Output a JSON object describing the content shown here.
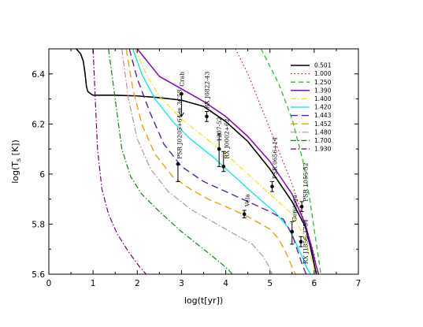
{
  "chart_data": {
    "type": "line",
    "xlabel": "log(t[yr])",
    "ylabel": "log(T_s [K])",
    "xlim": [
      0,
      7
    ],
    "ylim": [
      5.6,
      6.5
    ],
    "xticks": [
      "0",
      "1",
      "2",
      "3",
      "4",
      "5",
      "6",
      "7"
    ],
    "yticks": [
      "5.6",
      "5.8",
      "6",
      "6.2",
      "6.4"
    ],
    "grid": false,
    "legend_position": "top-right",
    "series": [
      {
        "name": "0.501",
        "color": "#000000",
        "dash": "",
        "width": 1.6,
        "x": [
          0.62,
          0.72,
          0.78,
          0.82,
          0.85,
          0.88,
          0.95,
          1.0,
          1.5,
          2.0,
          2.5,
          3.0,
          3.5,
          4.0,
          4.5,
          5.0,
          5.5,
          5.8,
          5.9,
          6.0,
          6.05
        ],
        "y": [
          6.5,
          6.48,
          6.45,
          6.4,
          6.35,
          6.33,
          6.32,
          6.315,
          6.315,
          6.312,
          6.305,
          6.295,
          6.27,
          6.21,
          6.13,
          6.02,
          5.89,
          5.79,
          5.72,
          5.64,
          5.6
        ]
      },
      {
        "name": "1.000",
        "color": "#d40000",
        "dash": "1.5,3",
        "width": 1.1,
        "x": [
          4.22,
          4.5,
          5.0,
          5.5,
          5.8,
          6.0,
          6.08
        ],
        "y": [
          6.5,
          6.4,
          6.18,
          5.96,
          5.8,
          5.68,
          5.6
        ]
      },
      {
        "name": "1.250",
        "color": "#22c422",
        "dash": "6,4",
        "width": 1.3,
        "x": [
          4.8,
          5.2,
          5.5,
          5.75,
          5.9,
          6.0,
          6.1,
          6.15
        ],
        "y": [
          6.5,
          6.36,
          6.22,
          6.05,
          5.9,
          5.78,
          5.66,
          5.6
        ]
      },
      {
        "name": "1.390",
        "color": "#8a00c4",
        "dash": "",
        "width": 1.5,
        "x": [
          2.0,
          2.5,
          3.0,
          3.5,
          4.0,
          4.5,
          5.0,
          5.5,
          5.8,
          5.95,
          6.05,
          6.1
        ],
        "y": [
          6.5,
          6.39,
          6.34,
          6.29,
          6.23,
          6.15,
          6.05,
          5.92,
          5.8,
          5.7,
          5.63,
          5.6
        ]
      },
      {
        "name": "1.400",
        "color": "#eaea00",
        "dash": "7,2.5,1.5,2.5",
        "width": 1.2,
        "x": [
          1.95,
          2.2,
          2.5,
          3.0,
          3.5,
          4.0,
          4.5,
          5.0,
          5.5,
          5.8,
          5.95,
          6.03
        ],
        "y": [
          6.5,
          6.4,
          6.31,
          6.22,
          6.15,
          6.08,
          6.0,
          5.92,
          5.84,
          5.74,
          5.65,
          5.6
        ]
      },
      {
        "name": "1.420",
        "color": "#00e8e8",
        "dash": "",
        "width": 1.3,
        "x": [
          1.9,
          2.1,
          2.4,
          2.8,
          3.2,
          3.7,
          4.2,
          4.7,
          5.1,
          5.4,
          5.6,
          5.75,
          5.85,
          5.92
        ],
        "y": [
          6.5,
          6.4,
          6.3,
          6.21,
          6.14,
          6.07,
          5.99,
          5.91,
          5.85,
          5.79,
          5.72,
          5.66,
          5.62,
          5.6
        ]
      },
      {
        "name": "1.443",
        "color": "#5a20b0",
        "dash": "9,5",
        "width": 1.4,
        "x": [
          1.82,
          2.0,
          2.3,
          2.6,
          3.0,
          3.5,
          4.0,
          4.5,
          5.0,
          5.3,
          5.5,
          5.65,
          5.75,
          5.82
        ],
        "y": [
          6.5,
          6.38,
          6.24,
          6.12,
          6.03,
          5.97,
          5.93,
          5.89,
          5.85,
          5.82,
          5.76,
          5.68,
          5.63,
          5.6
        ]
      },
      {
        "name": "1.452",
        "color": "#f0a000",
        "dash": "9,5",
        "width": 1.4,
        "x": [
          1.75,
          1.9,
          2.1,
          2.4,
          2.8,
          3.2,
          3.6,
          4.0,
          4.5,
          5.0,
          5.2,
          5.35,
          5.45,
          5.52,
          5.58
        ],
        "y": [
          6.5,
          6.34,
          6.2,
          6.08,
          5.99,
          5.94,
          5.9,
          5.87,
          5.83,
          5.78,
          5.74,
          5.69,
          5.65,
          5.62,
          5.6
        ]
      },
      {
        "name": "1.480",
        "color": "#c09090",
        "dash": "8,2.5,1.5,2.5",
        "width": 1.2,
        "x": [
          1.65,
          1.8,
          2.0,
          2.3,
          2.7,
          3.2,
          3.7,
          4.2,
          4.6,
          4.85,
          4.98,
          5.05
        ],
        "y": [
          6.5,
          6.3,
          6.14,
          6.02,
          5.93,
          5.86,
          5.81,
          5.76,
          5.72,
          5.67,
          5.63,
          5.6
        ]
      },
      {
        "name": "1.700",
        "color": "#0a8a0a",
        "dash": "7,2.5,1.5,2.5",
        "width": 1.2,
        "x": [
          1.35,
          1.5,
          1.65,
          1.85,
          2.1,
          2.5,
          3.0,
          3.5,
          3.85,
          4.05,
          4.15
        ],
        "y": [
          6.5,
          6.3,
          6.1,
          5.99,
          5.92,
          5.85,
          5.77,
          5.7,
          5.65,
          5.62,
          5.6
        ]
      },
      {
        "name": "1.930",
        "color": "#7a006a",
        "dash": "7,2.5,1.5,2.5",
        "width": 1.2,
        "x": [
          1.0,
          1.05,
          1.1,
          1.2,
          1.35,
          1.55,
          1.8,
          2.05,
          2.2
        ],
        "y": [
          6.5,
          6.3,
          6.1,
          5.94,
          5.84,
          5.76,
          5.69,
          5.63,
          5.6
        ]
      }
    ],
    "observations": [
      {
        "name": "Crab",
        "x": 3.0,
        "y": 6.32,
        "err_lo": 0.09,
        "err_hi": 0,
        "upper_limit": true
      },
      {
        "name": "RX J0822-43",
        "x": 3.57,
        "y": 6.23,
        "err_lo": 0.02,
        "err_hi": 0.02
      },
      {
        "name": "1207-52",
        "x": 3.85,
        "y": 6.1,
        "err_lo": 0.07,
        "err_hi": 0.06
      },
      {
        "name": "RX J0002+62",
        "x": 3.95,
        "y": 6.03,
        "err_lo": 0.02,
        "err_hi": 0.06
      },
      {
        "name": "PSR J0205+64 in 3C58",
        "x": 2.92,
        "y": 6.04,
        "err_lo": 0.07,
        "err_hi": 0
      },
      {
        "name": "PSR 0656+14",
        "x": 5.05,
        "y": 5.95,
        "err_lo": 0.02,
        "err_hi": 0.02
      },
      {
        "name": "Vela",
        "x": 4.42,
        "y": 5.84,
        "err_lo": 0.015,
        "err_hi": 0.015
      },
      {
        "name": "Geminga",
        "x": 5.5,
        "y": 5.77,
        "err_lo": 0.05,
        "err_hi": 0.04
      },
      {
        "name": "PSR 1055-52",
        "x": 5.72,
        "y": 5.87,
        "err_lo": 0.02,
        "err_hi": 0.02
      },
      {
        "name": "RX J1856-3754",
        "x": 5.7,
        "y": 5.73,
        "err_lo": 0.02,
        "err_hi": 0.02
      }
    ]
  }
}
